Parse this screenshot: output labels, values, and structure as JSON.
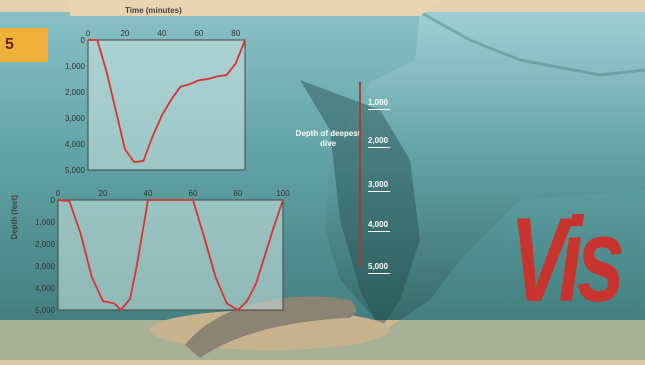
{
  "badge": "5",
  "headline_fragment": "Vis",
  "time_axis_label": "Time (minutes)",
  "depth_axis_label": "Depth (feet)",
  "depth_title": "Depth of deepest dive",
  "depth_markers": [
    "1,000",
    "2,000",
    "3,000",
    "4,000",
    "5,000"
  ],
  "chart_data": [
    {
      "type": "line",
      "xlabel": "Time (minutes)",
      "ylabel": "Depth (feet)",
      "x_ticks": [
        0,
        20,
        40,
        60,
        80
      ],
      "y_ticks": [
        0,
        1000,
        2000,
        3000,
        4000,
        5000
      ],
      "xlim": [
        0,
        85
      ],
      "ylim": [
        5000,
        0
      ],
      "series": [
        {
          "x": [
            0,
            5,
            10,
            15,
            20,
            25,
            30,
            35,
            40,
            45,
            50,
            55,
            60,
            65,
            70,
            75,
            80,
            85
          ],
          "y": [
            0,
            0,
            1200,
            2700,
            4200,
            4700,
            4650,
            3700,
            2900,
            2300,
            1800,
            1700,
            1550,
            1500,
            1400,
            1350,
            900,
            0
          ]
        }
      ],
      "color": "#d8342a"
    },
    {
      "type": "line",
      "xlabel": "",
      "ylabel": "Depth (feet)",
      "x_ticks": [
        0,
        20,
        40,
        60,
        80,
        100
      ],
      "y_ticks": [
        0,
        1000,
        2000,
        3000,
        4000,
        5000
      ],
      "xlim": [
        0,
        100
      ],
      "ylim": [
        5000,
        0
      ],
      "series": [
        {
          "x": [
            0,
            5,
            10,
            15,
            20,
            25,
            28,
            32,
            35,
            40,
            45,
            50,
            55,
            60,
            65,
            70,
            75,
            80,
            84,
            88,
            92,
            96,
            100
          ],
          "y": [
            0,
            50,
            1500,
            3500,
            4600,
            4700,
            5000,
            4500,
            3000,
            0,
            0,
            0,
            0,
            0,
            1700,
            3500,
            4700,
            5000,
            4600,
            3800,
            2500,
            1200,
            0
          ]
        }
      ],
      "color": "#d8342a"
    }
  ]
}
